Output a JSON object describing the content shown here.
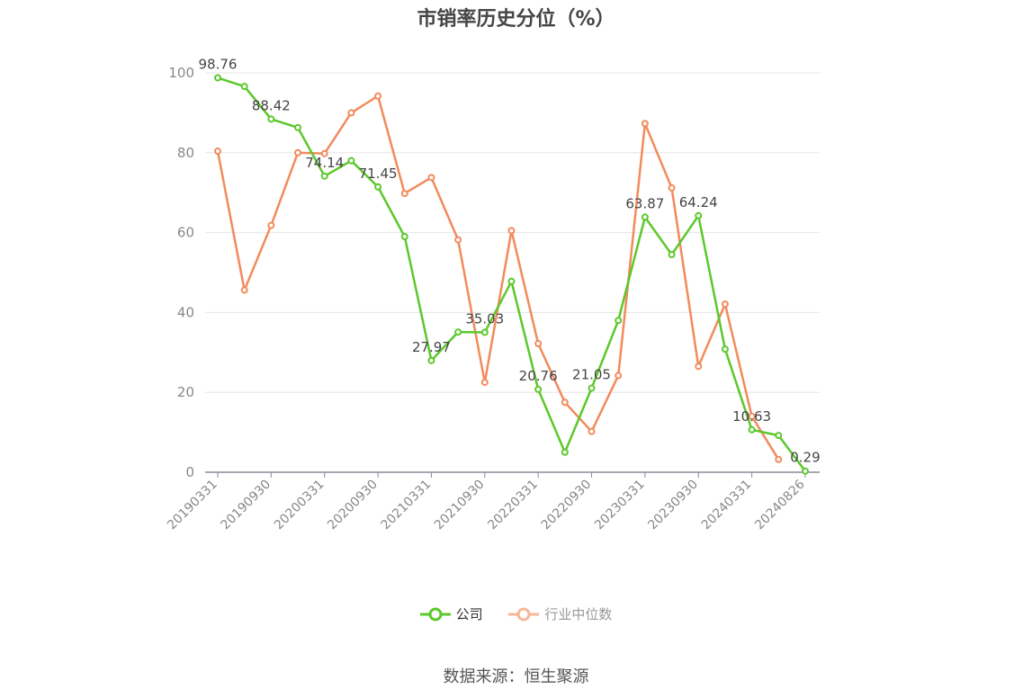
{
  "chart_data": {
    "type": "line",
    "title": "市销率历史分位（%）",
    "x": [
      "20190331",
      "20190630",
      "20190930",
      "20191231",
      "20200331",
      "20200630",
      "20200930",
      "20201231",
      "20210331",
      "20210630",
      "20210930",
      "20211231",
      "20220331",
      "20220630",
      "20220930",
      "20221231",
      "20230331",
      "20230630",
      "20230930",
      "20231231",
      "20240331",
      "20240630",
      "20240826"
    ],
    "x_tick_labels": [
      "20190331",
      "20190930",
      "20200331",
      "20200930",
      "20210331",
      "20210930",
      "20220331",
      "20220930",
      "20230331",
      "20230930",
      "20240331",
      "20240826"
    ],
    "ylim": [
      0,
      100
    ],
    "y_ticks": [
      0,
      20,
      40,
      60,
      80,
      100
    ],
    "grid": true,
    "legend_position": "bottom",
    "series": [
      {
        "name": "公司",
        "color": "#5cc82b",
        "values": [
          98.76,
          96.6,
          88.42,
          86.3,
          74.14,
          78.0,
          71.45,
          59.0,
          27.97,
          35.1,
          35.03,
          47.8,
          20.76,
          5.0,
          21.05,
          38.0,
          63.87,
          54.5,
          64.24,
          30.8,
          10.63,
          9.2,
          0.29
        ],
        "labels": {
          "0": "98.76",
          "2": "88.42",
          "4": "74.14",
          "6": "71.45",
          "8": "27.97",
          "10": "35.03",
          "12": "20.76",
          "14": "21.05",
          "16": "63.87",
          "18": "64.24",
          "20": "10.63",
          "22": "0.29"
        }
      },
      {
        "name": "行业中位数",
        "color": "#f28b5c",
        "legend_color": "#f6b79a",
        "values": [
          80.4,
          45.6,
          61.8,
          80.0,
          79.8,
          90.0,
          94.2,
          69.8,
          73.8,
          58.2,
          22.5,
          60.5,
          32.2,
          17.5,
          10.2,
          24.2,
          87.3,
          71.2,
          26.5,
          42.1,
          14.0,
          3.2,
          null
        ]
      }
    ]
  },
  "source": "数据来源：恒生聚源"
}
